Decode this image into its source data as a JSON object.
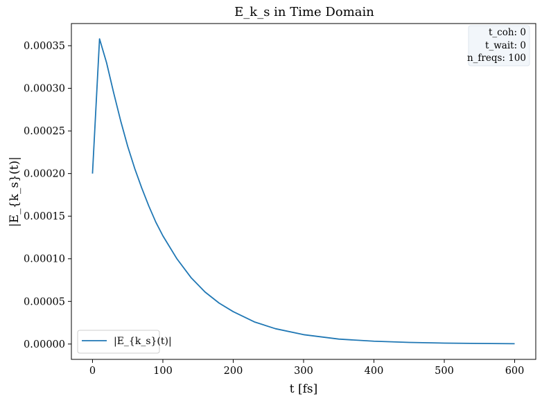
{
  "chart_data": {
    "type": "line",
    "title": "E_k_s in Time Domain",
    "xlabel": "t [fs]",
    "ylabel": "|E_{k_s}(t)|",
    "xlim": [
      -30,
      630
    ],
    "ylim": [
      -1.8e-05,
      0.000376
    ],
    "x_ticks": [
      0,
      100,
      200,
      300,
      400,
      500,
      600
    ],
    "x_tick_labels": [
      "0",
      "100",
      "200",
      "300",
      "400",
      "500",
      "600"
    ],
    "y_ticks": [
      0.0,
      5e-05,
      0.0001,
      0.00015,
      0.0002,
      0.00025,
      0.0003,
      0.00035
    ],
    "y_tick_labels": [
      "0.00000",
      "0.00005",
      "0.00010",
      "0.00015",
      "0.00020",
      "0.00025",
      "0.00030",
      "0.00035"
    ],
    "grid": false,
    "legend_position": "lower-left",
    "info_box_position": "top-right",
    "info_box": [
      "t_coh: 0",
      "t_wait: 0",
      "n_freqs: 100"
    ],
    "series": [
      {
        "name": "|E_{k_s}(t)|",
        "color": "#1f77b4",
        "x": [
          0,
          10,
          20,
          30,
          40,
          50,
          60,
          70,
          80,
          90,
          100,
          120,
          140,
          160,
          180,
          200,
          230,
          260,
          300,
          350,
          400,
          450,
          500,
          550,
          600
        ],
        "y": [
          0.0002,
          0.000358,
          0.00033,
          0.000295,
          0.000262,
          0.000232,
          0.000206,
          0.000183,
          0.000162,
          0.000143,
          0.000127,
          0.0001,
          7.8e-05,
          6.1e-05,
          4.8e-05,
          3.8e-05,
          2.6e-05,
          1.8e-05,
          1.1e-05,
          5.8e-06,
          3.3e-06,
          1.9e-06,
          1.1e-06,
          7e-07,
          4e-07
        ]
      }
    ]
  }
}
